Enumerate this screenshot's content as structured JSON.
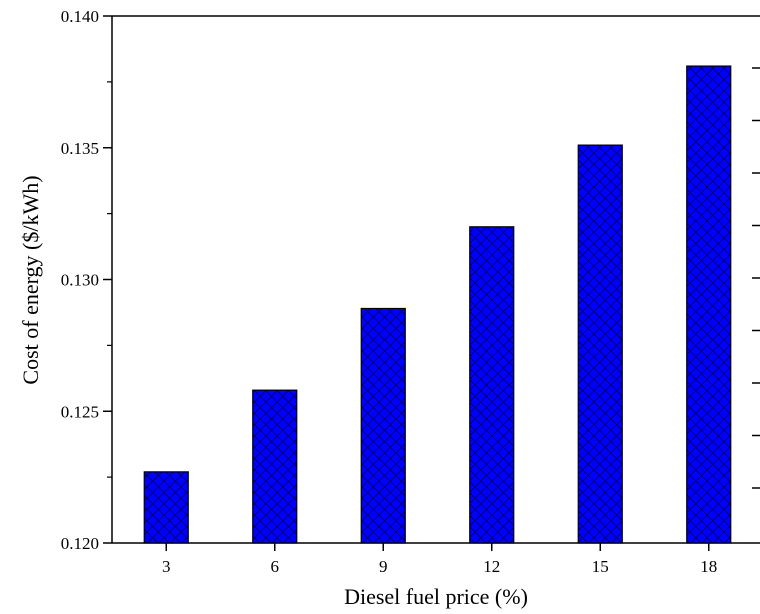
{
  "chart_data": {
    "type": "bar",
    "title": "",
    "xlabel": "Diesel fuel price (%)",
    "ylabel": "Cost of energy ($/kWh)",
    "categories": [
      "3",
      "6",
      "9",
      "12",
      "15",
      "18"
    ],
    "values": [
      0.1227,
      0.1258,
      0.1289,
      0.132,
      0.1351,
      0.1381
    ],
    "ylim": [
      0.12,
      0.14
    ],
    "yticks": [
      "0.120",
      "0.125",
      "0.130",
      "0.135",
      "0.140"
    ],
    "bar_color": "#0000ff",
    "bar_pattern": "crosshatch",
    "grid": false,
    "legend": "none"
  }
}
